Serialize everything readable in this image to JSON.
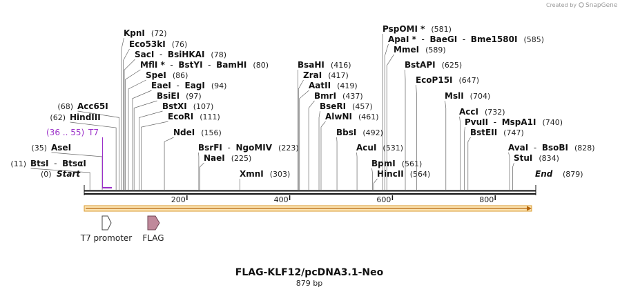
{
  "credit": {
    "prefix": "Created by",
    "brand": "SnapGene"
  },
  "sequence": {
    "name": "FLAG-KLF12/pcDNA3.1-Neo",
    "length_label": "879 bp",
    "length": 879,
    "start_label": "Start",
    "start_pos": "(0)",
    "end_label": "End",
    "end_pos": "(879)"
  },
  "ruler": {
    "ticks": [
      "200",
      "400",
      "600",
      "800"
    ]
  },
  "primers": [
    {
      "name": "T7",
      "range": "(36 .. 55)",
      "color": "#9b30c9"
    }
  ],
  "features": [
    {
      "name": "T7 promoter",
      "fill": "#ffffff",
      "stroke": "#444444"
    },
    {
      "name": "FLAG",
      "fill": "#c0899b",
      "stroke": "#6e4453"
    }
  ],
  "sites": [
    {
      "names": [
        "BtsI",
        "BtsαI"
      ],
      "pos": "(11)",
      "bp": 11,
      "star": false
    },
    {
      "names": [
        "AseI"
      ],
      "pos": "(35)",
      "bp": 35,
      "star": false
    },
    {
      "names": [
        "HindIII"
      ],
      "pos": "(62)",
      "bp": 62,
      "star": false
    },
    {
      "names": [
        "Acc65I"
      ],
      "pos": "(68)",
      "bp": 68,
      "star": false
    },
    {
      "names": [
        "KpnI"
      ],
      "pos": "(72)",
      "bp": 72,
      "star": false
    },
    {
      "names": [
        "Eco53kI"
      ],
      "pos": "(76)",
      "bp": 76,
      "star": false
    },
    {
      "names": [
        "SacI",
        "BsiHKAI"
      ],
      "pos": "(78)",
      "bp": 78,
      "star": false
    },
    {
      "names": [
        "MflI *",
        "BstYI",
        "BamHI"
      ],
      "pos": "(80)",
      "bp": 80,
      "star": true
    },
    {
      "names": [
        "SpeI"
      ],
      "pos": "(86)",
      "bp": 86,
      "star": false
    },
    {
      "names": [
        "EaeI",
        "EagI"
      ],
      "pos": "(94)",
      "bp": 94,
      "star": false
    },
    {
      "names": [
        "BsiEI"
      ],
      "pos": "(97)",
      "bp": 97,
      "star": false
    },
    {
      "names": [
        "BstXI"
      ],
      "pos": "(107)",
      "bp": 107,
      "star": false
    },
    {
      "names": [
        "EcoRI"
      ],
      "pos": "(111)",
      "bp": 111,
      "star": false
    },
    {
      "names": [
        "NdeI"
      ],
      "pos": "(156)",
      "bp": 156,
      "star": false
    },
    {
      "names": [
        "BsrFI",
        "NgoMIV"
      ],
      "pos": "(223)",
      "bp": 223,
      "star": false
    },
    {
      "names": [
        "NaeI"
      ],
      "pos": "(225)",
      "bp": 225,
      "star": false
    },
    {
      "names": [
        "XmnI"
      ],
      "pos": "(303)",
      "bp": 303,
      "star": false
    },
    {
      "names": [
        "BsaHI"
      ],
      "pos": "(416)",
      "bp": 416,
      "star": false
    },
    {
      "names": [
        "ZraI"
      ],
      "pos": "(417)",
      "bp": 417,
      "star": false
    },
    {
      "names": [
        "AatII"
      ],
      "pos": "(419)",
      "bp": 419,
      "star": false
    },
    {
      "names": [
        "BmrI"
      ],
      "pos": "(437)",
      "bp": 437,
      "star": false
    },
    {
      "names": [
        "BseRI"
      ],
      "pos": "(457)",
      "bp": 457,
      "star": false
    },
    {
      "names": [
        "AlwNI"
      ],
      "pos": "(461)",
      "bp": 461,
      "star": false
    },
    {
      "names": [
        "BbsI"
      ],
      "pos": "(492)",
      "bp": 492,
      "star": false
    },
    {
      "names": [
        "AcuI"
      ],
      "pos": "(531)",
      "bp": 531,
      "star": false
    },
    {
      "names": [
        "BpmI"
      ],
      "pos": "(561)",
      "bp": 561,
      "star": false
    },
    {
      "names": [
        "HincII"
      ],
      "pos": "(564)",
      "bp": 564,
      "star": false
    },
    {
      "names": [
        "PspOMI *"
      ],
      "pos": "(581)",
      "bp": 581,
      "star": true
    },
    {
      "names": [
        "ApaI *",
        "BaeGI",
        "Bme1580I"
      ],
      "pos": "(585)",
      "bp": 585,
      "star": true
    },
    {
      "names": [
        "MmeI"
      ],
      "pos": "(589)",
      "bp": 589,
      "star": false
    },
    {
      "names": [
        "BstAPI"
      ],
      "pos": "(625)",
      "bp": 625,
      "star": false
    },
    {
      "names": [
        "EcoP15I"
      ],
      "pos": "(647)",
      "bp": 647,
      "star": false
    },
    {
      "names": [
        "MslI"
      ],
      "pos": "(704)",
      "bp": 704,
      "star": false
    },
    {
      "names": [
        "AccI"
      ],
      "pos": "(732)",
      "bp": 732,
      "star": false
    },
    {
      "names": [
        "PvuII",
        "MspA1I"
      ],
      "pos": "(740)",
      "bp": 740,
      "star": false
    },
    {
      "names": [
        "BstEII"
      ],
      "pos": "(747)",
      "bp": 747,
      "star": false
    },
    {
      "names": [
        "AvaI",
        "BsoBI"
      ],
      "pos": "(828)",
      "bp": 828,
      "star": false
    },
    {
      "names": [
        "StuI"
      ],
      "pos": "(834)",
      "bp": 834,
      "star": false
    }
  ]
}
